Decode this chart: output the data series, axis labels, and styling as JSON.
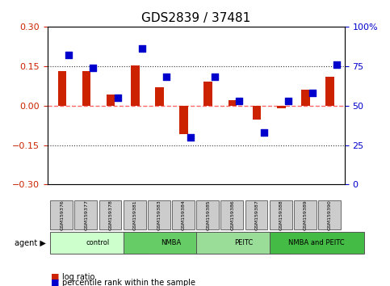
{
  "title": "GDS2839 / 37481",
  "samples": [
    "GSM159376",
    "GSM159377",
    "GSM159378",
    "GSM159381",
    "GSM159383",
    "GSM159384",
    "GSM159385",
    "GSM159386",
    "GSM159387",
    "GSM159388",
    "GSM159389",
    "GSM159390"
  ],
  "log_ratio": [
    0.13,
    0.13,
    0.04,
    0.152,
    0.07,
    -0.11,
    0.09,
    0.02,
    -0.055,
    -0.01,
    0.06,
    0.11
  ],
  "percentile_rank": [
    82,
    74,
    55,
    86,
    68,
    30,
    68,
    53,
    33,
    53,
    58,
    76
  ],
  "groups": [
    {
      "label": "control",
      "start": 0,
      "end": 3,
      "color": "#ccffcc"
    },
    {
      "label": "NMBA",
      "start": 3,
      "end": 6,
      "color": "#66cc66"
    },
    {
      "label": "PEITC",
      "start": 6,
      "end": 9,
      "color": "#99dd99"
    },
    {
      "label": "NMBA and PEITC",
      "start": 9,
      "end": 12,
      "color": "#44bb44"
    }
  ],
  "ylim": [
    -0.3,
    0.3
  ],
  "yticks_left": [
    -0.3,
    -0.15,
    0.0,
    0.15,
    0.3
  ],
  "yticks_right": [
    0,
    25,
    50,
    75,
    100
  ],
  "hlines": [
    0.15,
    0.0,
    -0.15
  ],
  "bar_color": "#cc2200",
  "dot_color": "#0000cc",
  "zero_line_color": "#ff6666",
  "hline_color": "#333333",
  "bg_plot": "#ffffff",
  "bg_sample": "#cccccc",
  "agent_label": "agent",
  "legend_logratio": "log ratio",
  "legend_percentile": "percentile rank within the sample"
}
